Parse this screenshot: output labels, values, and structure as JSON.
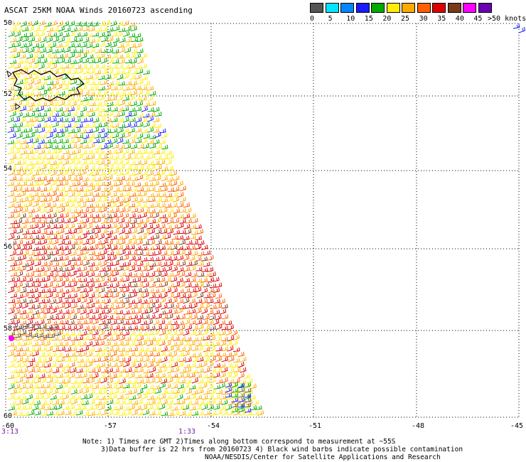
{
  "title": "ASCAT 25KM NOAA Winds 20160723 ascending",
  "legend": {
    "labels": [
      "0",
      "5",
      "10",
      "15",
      "20",
      "25",
      "30",
      "35",
      "40",
      "45",
      ">50 knots"
    ],
    "colors": [
      "#555555",
      "#00e5ff",
      "#0087ff",
      "#1a1aff",
      "#00aa00",
      "#ffee00",
      "#ffaa00",
      "#ff6000",
      "#dd0000",
      "#7a3b1a",
      "#ff00ff",
      "#6a00b0"
    ]
  },
  "map": {
    "lat_labels": [
      "50",
      "52",
      "54",
      "56",
      "58",
      "60"
    ],
    "lon_labels": [
      "-60",
      "-57",
      "-54",
      "-51",
      "-48",
      "-45"
    ],
    "time_labels": [
      "3:13",
      "1:33"
    ]
  },
  "notes": [
    "Note: 1) Times are GMT 2)Times along bottom correspond to measurement at ~55S",
    "3)Data buffer is 22 hrs from 20160723 4) Black wind barbs indicate possible contamination",
    "NOAA/NESDIS/Center for Satellite Applications and Research"
  ]
}
